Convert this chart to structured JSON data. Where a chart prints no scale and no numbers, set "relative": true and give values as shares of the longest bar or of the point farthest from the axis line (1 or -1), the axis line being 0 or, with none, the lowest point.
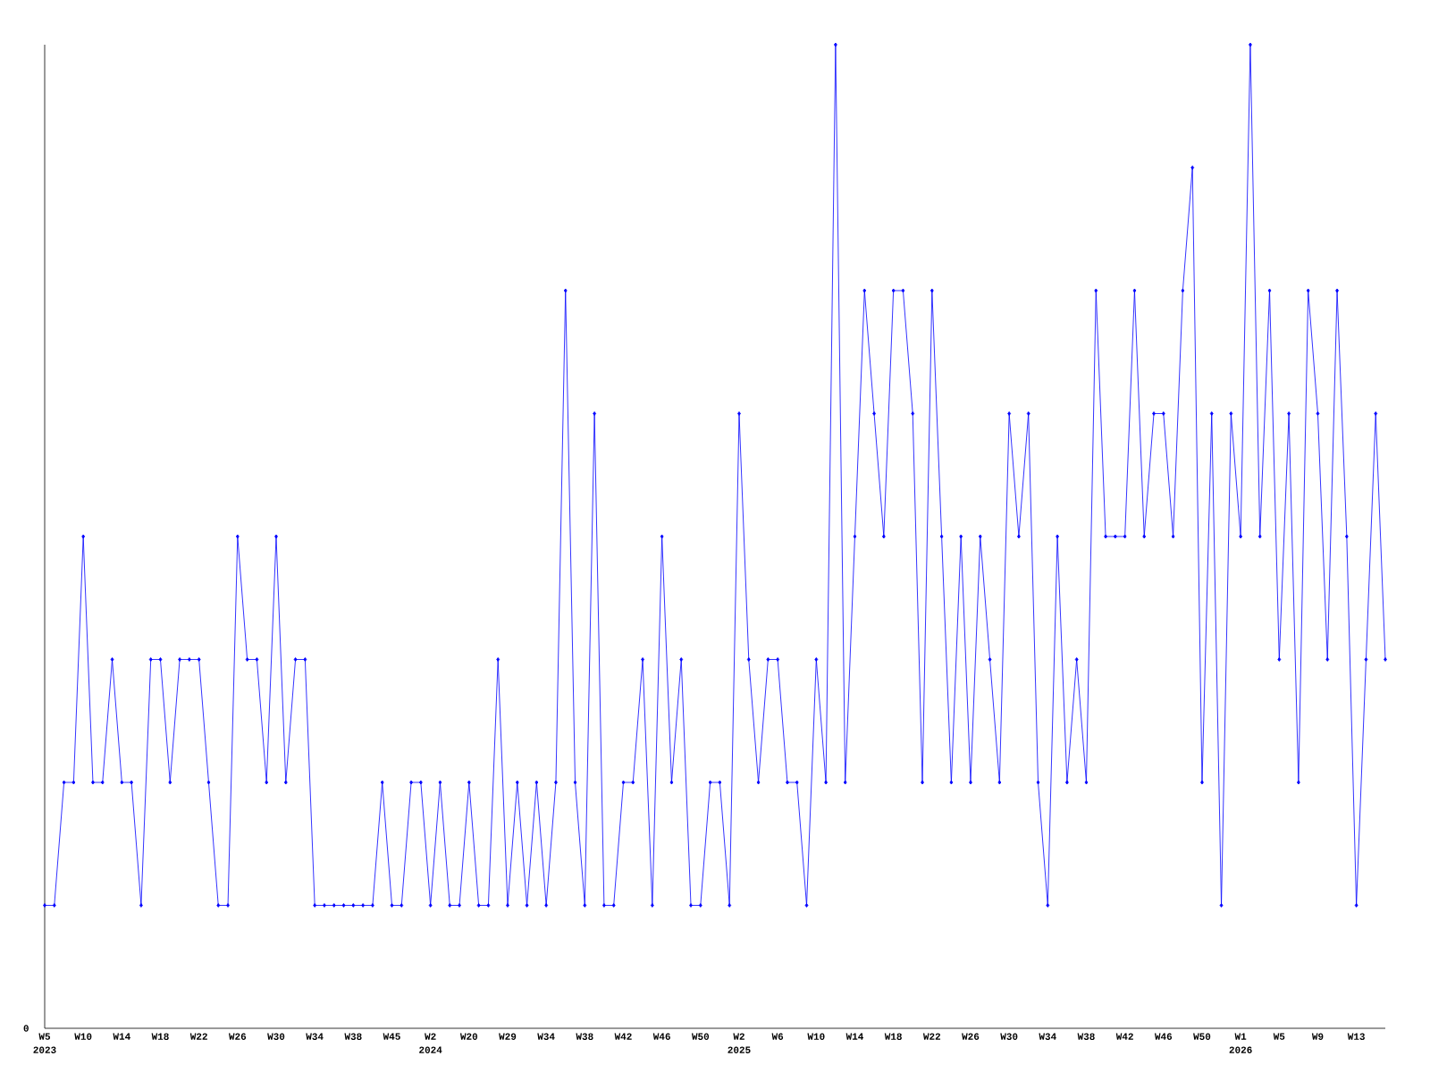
{
  "chart_data": {
    "type": "line",
    "relative": true,
    "color": "#0000ff",
    "marker": "diamond",
    "line_style": "solid",
    "categories": [
      "W5",
      null,
      null,
      null,
      "W10",
      null,
      null,
      null,
      "W14",
      null,
      null,
      null,
      "W18",
      null,
      null,
      null,
      "W22",
      null,
      null,
      null,
      "W26",
      null,
      null,
      null,
      "W30",
      null,
      null,
      null,
      "W34",
      null,
      null,
      null,
      "W38",
      null,
      null,
      null,
      "W45",
      null,
      null,
      null,
      "W2",
      null,
      null,
      null,
      "W20",
      null,
      null,
      null,
      "W29",
      null,
      null,
      null,
      "W34",
      null,
      null,
      null,
      "W38",
      null,
      null,
      null,
      "W42",
      null,
      null,
      null,
      "W46",
      null,
      null,
      null,
      "W50",
      null,
      null,
      null,
      "W2",
      null,
      null,
      null,
      "W6",
      null,
      null,
      null,
      "W10",
      null,
      null,
      null,
      "W14",
      null,
      null,
      null,
      "W18",
      null,
      null,
      null,
      "W22",
      null,
      null,
      null,
      "W26",
      null,
      null,
      null,
      "W30",
      null,
      null,
      null,
      "W34",
      null,
      null,
      null,
      "W38",
      null,
      null,
      null,
      "W42",
      null,
      null,
      null,
      "W46",
      null,
      null,
      null,
      "W50",
      null,
      null,
      null,
      "W1",
      null,
      null,
      null,
      "W5",
      null,
      null,
      null,
      "W9",
      null,
      null,
      null,
      "W13",
      null,
      null,
      null
    ],
    "values": [
      0.125,
      0.125,
      0.25,
      0.25,
      0.5,
      0.25,
      0.25,
      0.375,
      0.25,
      0.25,
      0.125,
      0.375,
      0.375,
      0.25,
      0.375,
      0.375,
      0.375,
      0.25,
      0.125,
      0.125,
      0.5,
      0.375,
      0.375,
      0.25,
      0.5,
      0.25,
      0.375,
      0.375,
      0.125,
      0.125,
      0.125,
      0.125,
      0.125,
      0.125,
      0.125,
      0.25,
      0.125,
      0.125,
      0.25,
      0.25,
      0.125,
      0.25,
      0.125,
      0.125,
      0.25,
      0.125,
      0.125,
      0.375,
      0.125,
      0.25,
      0.125,
      0.25,
      0.125,
      0.25,
      0.75,
      0.25,
      0.125,
      0.625,
      0.125,
      0.125,
      0.25,
      0.25,
      0.375,
      0.125,
      0.5,
      0.25,
      0.375,
      0.125,
      0.125,
      0.25,
      0.25,
      0.125,
      0.625,
      0.375,
      0.25,
      0.375,
      0.375,
      0.25,
      0.25,
      0.125,
      0.375,
      0.25,
      1,
      0.25,
      0.5,
      0.75,
      0.625,
      0.5,
      0.75,
      0.75,
      0.625,
      0.25,
      0.75,
      0.5,
      0.25,
      0.5,
      0.25,
      0.5,
      0.375,
      0.25,
      0.625,
      0.5,
      0.625,
      0.25,
      0.125,
      0.5,
      0.25,
      0.375,
      0.25,
      0.75,
      0.5,
      0.5,
      0.5,
      0.75,
      0.5,
      0.625,
      0.625,
      0.5,
      0.75,
      0.875,
      0.25,
      0.625,
      0.125,
      0.625,
      0.5,
      1,
      0.5,
      0.75,
      0.375,
      0.625,
      0.25,
      0.75,
      0.625,
      0.375,
      0.75,
      0.5,
      0.125,
      0.375,
      0.625,
      0.375
    ],
    "annotations": [
      "0",
      "2023",
      "2024",
      "2025",
      "2026"
    ]
  }
}
